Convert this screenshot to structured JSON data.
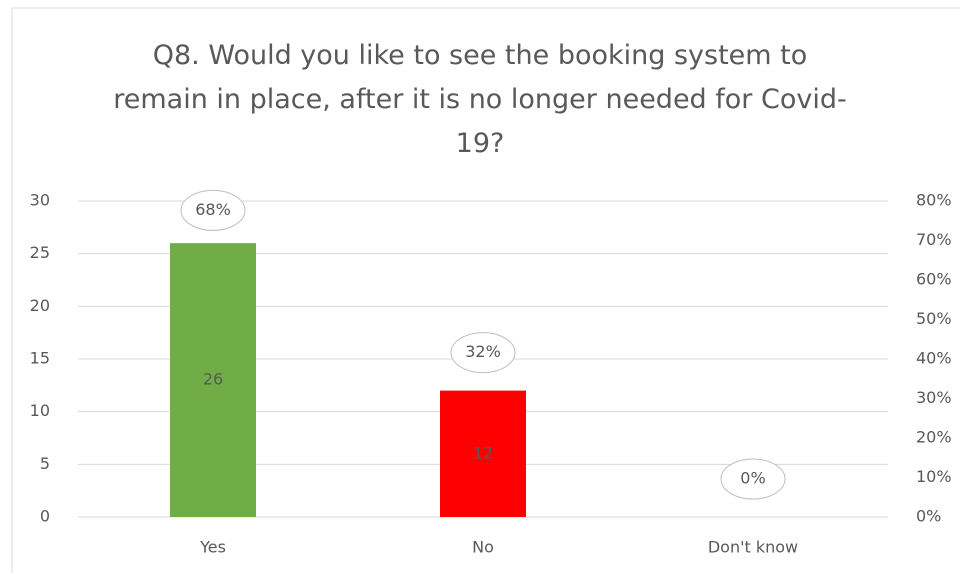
{
  "chart_data": {
    "type": "bar",
    "title": "Q8. Would you like to see the booking system to remain in place, after it is no longer needed for Covid-19?",
    "categories": [
      "Yes",
      "No",
      "Don't know"
    ],
    "series": [
      {
        "colors": [
          "#70ad47",
          "#ff0000",
          "#a5a5a5"
        ],
        "values": [
          26,
          12,
          0
        ]
      },
      {
        "axis": "y2",
        "values": [
          68,
          32,
          0
        ],
        "value_labels": [
          "68%",
          "32%",
          "0%"
        ]
      }
    ],
    "ylim": [
      0,
      30
    ],
    "yticks": [
      0,
      5,
      10,
      15,
      20,
      25,
      30
    ],
    "y2lim": [
      0,
      80
    ],
    "y2ticks": [
      {
        "value": 0,
        "label": "0%"
      },
      {
        "value": 10,
        "label": "10%"
      },
      {
        "value": 20,
        "label": "20%"
      },
      {
        "value": 30,
        "label": "30%"
      },
      {
        "value": 40,
        "label": "40%"
      },
      {
        "value": 50,
        "label": "50%"
      },
      {
        "value": 60,
        "label": "60%"
      },
      {
        "value": 70,
        "label": "70%"
      },
      {
        "value": 80,
        "label": "80%"
      }
    ],
    "grid": true
  }
}
